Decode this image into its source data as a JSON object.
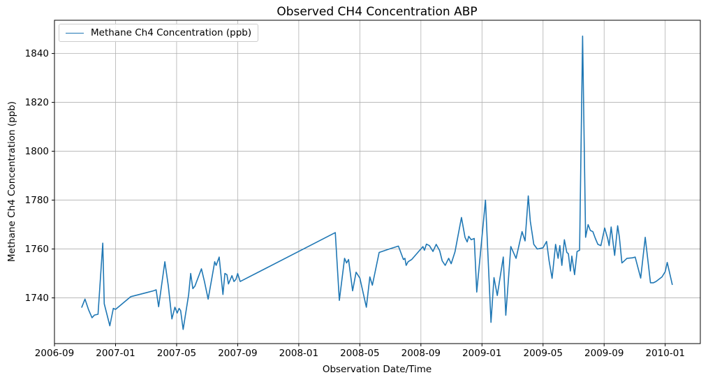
{
  "chart_data": {
    "type": "line",
    "title": "Observed CH4 Concentration ABP",
    "xlabel": "Observation Date/Time",
    "ylabel": "Methane Ch4 Concentration (ppb)",
    "grid": true,
    "legend": {
      "position": "upper left",
      "entries": [
        "Methane Ch4 Concentration (ppb)"
      ]
    },
    "colors": {
      "line": "#1f77b4",
      "grid": "#b0b0b0",
      "spine": "#000000",
      "background": "#ffffff"
    },
    "x_ticks": [
      "2006-09",
      "2007-01",
      "2007-05",
      "2007-09",
      "2008-01",
      "2008-05",
      "2008-09",
      "2009-01",
      "2009-05",
      "2009-09",
      "2010-01"
    ],
    "y_ticks": [
      1740,
      1760,
      1780,
      1800,
      1820,
      1840
    ],
    "x_range_months_from_2006_09": [
      0,
      42.3
    ],
    "ylim": [
      1721.3,
      1853.6
    ],
    "series": [
      {
        "name": "Methane Ch4 Concentration (ppb)",
        "points": [
          [
            "2006-10-25",
            1736.2
          ],
          [
            "2006-11-01",
            1739.5
          ],
          [
            "2006-11-08",
            1735.2
          ],
          [
            "2006-11-15",
            1731.9
          ],
          [
            "2006-11-20",
            1733.0
          ],
          [
            "2006-11-27",
            1733.3
          ],
          [
            "2006-12-06",
            1762.4
          ],
          [
            "2006-12-09",
            1737.6
          ],
          [
            "2006-12-20",
            1728.6
          ],
          [
            "2006-12-27",
            1735.7
          ],
          [
            "2007-01-01",
            1735.3
          ],
          [
            "2007-02-01",
            1740.5
          ],
          [
            "2007-03-01",
            1742.1
          ],
          [
            "2007-03-16",
            1742.9
          ],
          [
            "2007-03-21",
            1743.3
          ],
          [
            "2007-03-26",
            1736.4
          ],
          [
            "2007-04-08",
            1754.8
          ],
          [
            "2007-04-15",
            1744.8
          ],
          [
            "2007-04-22",
            1731.4
          ],
          [
            "2007-04-28",
            1736.2
          ],
          [
            "2007-05-02",
            1733.8
          ],
          [
            "2007-05-06",
            1735.7
          ],
          [
            "2007-05-09",
            1734.8
          ],
          [
            "2007-05-14",
            1727.1
          ],
          [
            "2007-05-25",
            1741.4
          ],
          [
            "2007-05-29",
            1750.0
          ],
          [
            "2007-06-03",
            1743.8
          ],
          [
            "2007-06-07",
            1744.8
          ],
          [
            "2007-06-20",
            1751.9
          ],
          [
            "2007-06-26",
            1746.7
          ],
          [
            "2007-07-03",
            1739.5
          ],
          [
            "2007-07-12",
            1750.0
          ],
          [
            "2007-07-16",
            1754.8
          ],
          [
            "2007-07-19",
            1753.3
          ],
          [
            "2007-07-25",
            1756.7
          ],
          [
            "2007-08-02",
            1741.4
          ],
          [
            "2007-08-06",
            1750.0
          ],
          [
            "2007-08-10",
            1749.5
          ],
          [
            "2007-08-13",
            1745.7
          ],
          [
            "2007-08-20",
            1749.1
          ],
          [
            "2007-08-24",
            1746.7
          ],
          [
            "2007-08-28",
            1747.6
          ],
          [
            "2007-09-01",
            1750.0
          ],
          [
            "2007-09-06",
            1746.7
          ],
          [
            "2008-03-13",
            1766.7
          ],
          [
            "2008-03-21",
            1739.0
          ],
          [
            "2008-04-01",
            1756.2
          ],
          [
            "2008-04-05",
            1754.3
          ],
          [
            "2008-04-09",
            1755.7
          ],
          [
            "2008-04-17",
            1742.9
          ],
          [
            "2008-04-24",
            1750.5
          ],
          [
            "2008-05-01",
            1748.1
          ],
          [
            "2008-05-14",
            1736.2
          ],
          [
            "2008-05-21",
            1748.6
          ],
          [
            "2008-05-26",
            1745.2
          ],
          [
            "2008-06-09",
            1758.6
          ],
          [
            "2008-06-29",
            1760.0
          ],
          [
            "2008-07-17",
            1761.2
          ],
          [
            "2008-07-27",
            1755.7
          ],
          [
            "2008-07-30",
            1756.2
          ],
          [
            "2008-08-02",
            1753.3
          ],
          [
            "2008-08-06",
            1754.8
          ],
          [
            "2008-08-13",
            1755.7
          ],
          [
            "2008-09-05",
            1761.0
          ],
          [
            "2008-09-08",
            1759.5
          ],
          [
            "2008-09-12",
            1762.0
          ],
          [
            "2008-09-18",
            1761.4
          ],
          [
            "2008-09-25",
            1759.0
          ],
          [
            "2008-10-01",
            1761.9
          ],
          [
            "2008-10-08",
            1759.3
          ],
          [
            "2008-10-13",
            1755.2
          ],
          [
            "2008-10-19",
            1753.3
          ],
          [
            "2008-10-26",
            1756.2
          ],
          [
            "2008-10-31",
            1754.0
          ],
          [
            "2008-11-08",
            1758.8
          ],
          [
            "2008-11-21",
            1772.9
          ],
          [
            "2008-11-28",
            1764.8
          ],
          [
            "2008-12-02",
            1762.9
          ],
          [
            "2008-12-05",
            1765.2
          ],
          [
            "2008-12-10",
            1763.8
          ],
          [
            "2008-12-16",
            1764.3
          ],
          [
            "2008-12-21",
            1742.4
          ],
          [
            "2009-01-08",
            1780.0
          ],
          [
            "2009-01-19",
            1730.0
          ],
          [
            "2009-01-25",
            1748.3
          ],
          [
            "2009-02-01",
            1741.0
          ],
          [
            "2009-02-13",
            1756.7
          ],
          [
            "2009-02-18",
            1732.9
          ],
          [
            "2009-02-28",
            1761.0
          ],
          [
            "2009-03-08",
            1756.2
          ],
          [
            "2009-03-20",
            1767.1
          ],
          [
            "2009-03-26",
            1763.3
          ],
          [
            "2009-04-02",
            1781.7
          ],
          [
            "2009-04-06",
            1771.4
          ],
          [
            "2009-04-13",
            1761.9
          ],
          [
            "2009-04-20",
            1760.0
          ],
          [
            "2009-05-01",
            1760.5
          ],
          [
            "2009-05-08",
            1763.1
          ],
          [
            "2009-05-13",
            1755.2
          ],
          [
            "2009-05-19",
            1748.0
          ],
          [
            "2009-05-26",
            1761.9
          ],
          [
            "2009-05-31",
            1756.2
          ],
          [
            "2009-06-04",
            1761.4
          ],
          [
            "2009-06-08",
            1753.3
          ],
          [
            "2009-06-13",
            1763.8
          ],
          [
            "2009-06-18",
            1758.6
          ],
          [
            "2009-06-21",
            1758.1
          ],
          [
            "2009-06-25",
            1751.0
          ],
          [
            "2009-06-28",
            1757.1
          ],
          [
            "2009-07-03",
            1749.5
          ],
          [
            "2009-07-08",
            1759.0
          ],
          [
            "2009-07-13",
            1759.5
          ],
          [
            "2009-07-19",
            1847.1
          ],
          [
            "2009-07-25",
            1764.8
          ],
          [
            "2009-07-30",
            1770.0
          ],
          [
            "2009-08-04",
            1767.6
          ],
          [
            "2009-08-09",
            1767.1
          ],
          [
            "2009-08-14",
            1764.3
          ],
          [
            "2009-08-19",
            1761.9
          ],
          [
            "2009-08-25",
            1761.4
          ],
          [
            "2009-09-02",
            1768.6
          ],
          [
            "2009-09-08",
            1764.3
          ],
          [
            "2009-09-11",
            1761.4
          ],
          [
            "2009-09-15",
            1769.0
          ],
          [
            "2009-09-22",
            1757.4
          ],
          [
            "2009-09-28",
            1769.5
          ],
          [
            "2009-10-01",
            1764.8
          ],
          [
            "2009-10-06",
            1754.3
          ],
          [
            "2009-10-09",
            1754.8
          ],
          [
            "2009-10-16",
            1756.2
          ],
          [
            "2009-10-27",
            1756.4
          ],
          [
            "2009-11-02",
            1756.7
          ],
          [
            "2009-11-13",
            1748.1
          ],
          [
            "2009-11-22",
            1764.8
          ],
          [
            "2009-12-02",
            1746.2
          ],
          [
            "2009-12-08",
            1746.2
          ],
          [
            "2009-12-13",
            1746.7
          ],
          [
            "2009-12-25",
            1748.6
          ],
          [
            "2010-01-01",
            1750.7
          ],
          [
            "2010-01-05",
            1754.5
          ],
          [
            "2010-01-15",
            1745.5
          ]
        ]
      }
    ]
  }
}
